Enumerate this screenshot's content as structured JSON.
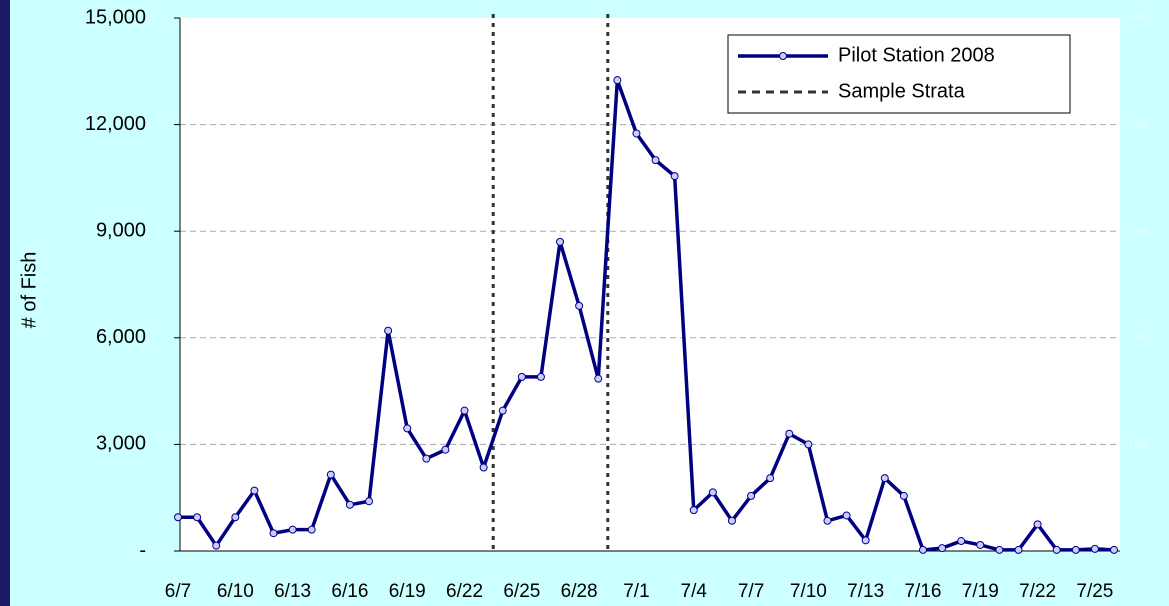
{
  "chart_data": {
    "type": "line",
    "y_label": "# of Fish",
    "categories": [
      "6/7",
      null,
      null,
      "6/10",
      null,
      null,
      "6/13",
      null,
      null,
      "6/16",
      null,
      null,
      "6/19",
      null,
      null,
      "6/22",
      null,
      null,
      "6/25",
      null,
      null,
      "6/28",
      null,
      null,
      "7/1",
      null,
      null,
      "7/4",
      null,
      null,
      "7/7",
      null,
      null,
      "7/10",
      null,
      null,
      "7/13",
      null,
      null,
      "7/16",
      null,
      null,
      "7/19",
      null,
      null,
      "7/22",
      null,
      null,
      "7/25",
      null
    ],
    "series": [
      {
        "name": "Pilot Station 2008",
        "color": "#000080",
        "marker_fill": "#ccccff",
        "values": [
          950,
          950,
          150,
          950,
          1700,
          500,
          600,
          600,
          2150,
          1300,
          1400,
          6200,
          3450,
          2600,
          2850,
          3950,
          2350,
          3950,
          4900,
          4900,
          8700,
          6900,
          4850,
          13250,
          11750,
          11000,
          10550,
          1150,
          1650,
          850,
          1550,
          2050,
          3300,
          3000,
          850,
          1000,
          300,
          2050,
          1550,
          30,
          80,
          280,
          170,
          30,
          30,
          750,
          30,
          30,
          60,
          30
        ]
      }
    ],
    "sample_strata": {
      "name": "Sample Strata",
      "color": "#333333",
      "positions": [
        16.5,
        22.5
      ]
    },
    "ylim": [
      0,
      15000
    ],
    "yticks": [
      {
        "value": 0,
        "label": "-"
      },
      {
        "value": 3000,
        "label": "3,000"
      },
      {
        "value": 6000,
        "label": "6,000"
      },
      {
        "value": 9000,
        "label": "9,000"
      },
      {
        "value": 12000,
        "label": "12,000"
      },
      {
        "value": 15000,
        "label": "15,000"
      }
    ],
    "y2lim": [
      0,
      5000
    ],
    "y2ticks": [
      {
        "value": 1000,
        "label": "1,000"
      },
      {
        "value": 2000,
        "label": "2,000"
      },
      {
        "value": 3000,
        "label": "3,000"
      },
      {
        "value": 4000,
        "label": "4,000"
      },
      {
        "value": 5000,
        "label": "5,000"
      }
    ],
    "grid": true
  }
}
